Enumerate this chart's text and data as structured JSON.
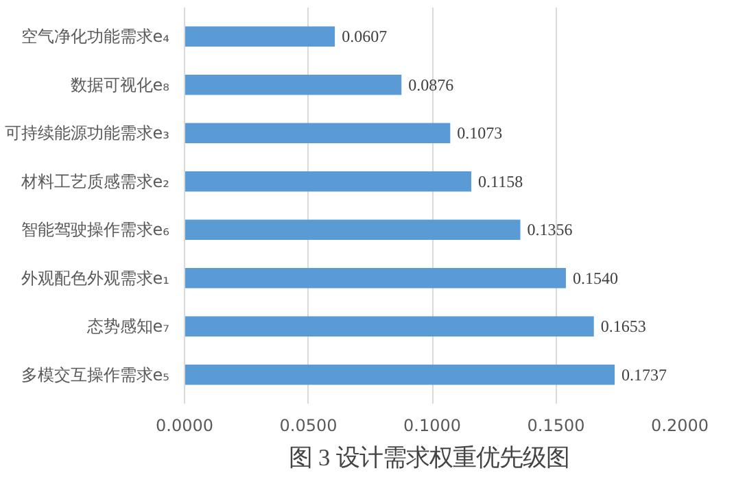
{
  "chart_data": {
    "type": "bar",
    "orientation": "horizontal",
    "categories": [
      "空气净化功能需求e₄",
      "数据可视化e₈",
      "可持续能源功能需求e₃",
      "材料工艺质感需求e₂",
      "智能驾驶操作需求e₆",
      "外观配色外观需求e₁",
      "态势感知e₇",
      "多模交互操作需求e₅"
    ],
    "values": [
      0.0607,
      0.0876,
      0.1073,
      0.1158,
      0.1356,
      0.154,
      0.1653,
      0.1737
    ],
    "value_labels": [
      "0.0607",
      "0.0876",
      "0.1073",
      "0.1158",
      "0.1356",
      "0.1540",
      "0.1653",
      "0.1737"
    ],
    "color": "#5b9bd5",
    "xlim": [
      0,
      0.2
    ],
    "xticks": [
      {
        "value": 0,
        "label": "0.0000"
      },
      {
        "value": 0.05,
        "label": "0.0500"
      },
      {
        "value": 0.1,
        "label": "0.1000"
      },
      {
        "value": 0.15,
        "label": "0.1500"
      },
      {
        "value": 0.2,
        "label": "0.2000"
      }
    ],
    "grid": "x",
    "annotations": [
      "图 3  设计需求权重优先级图"
    ]
  }
}
